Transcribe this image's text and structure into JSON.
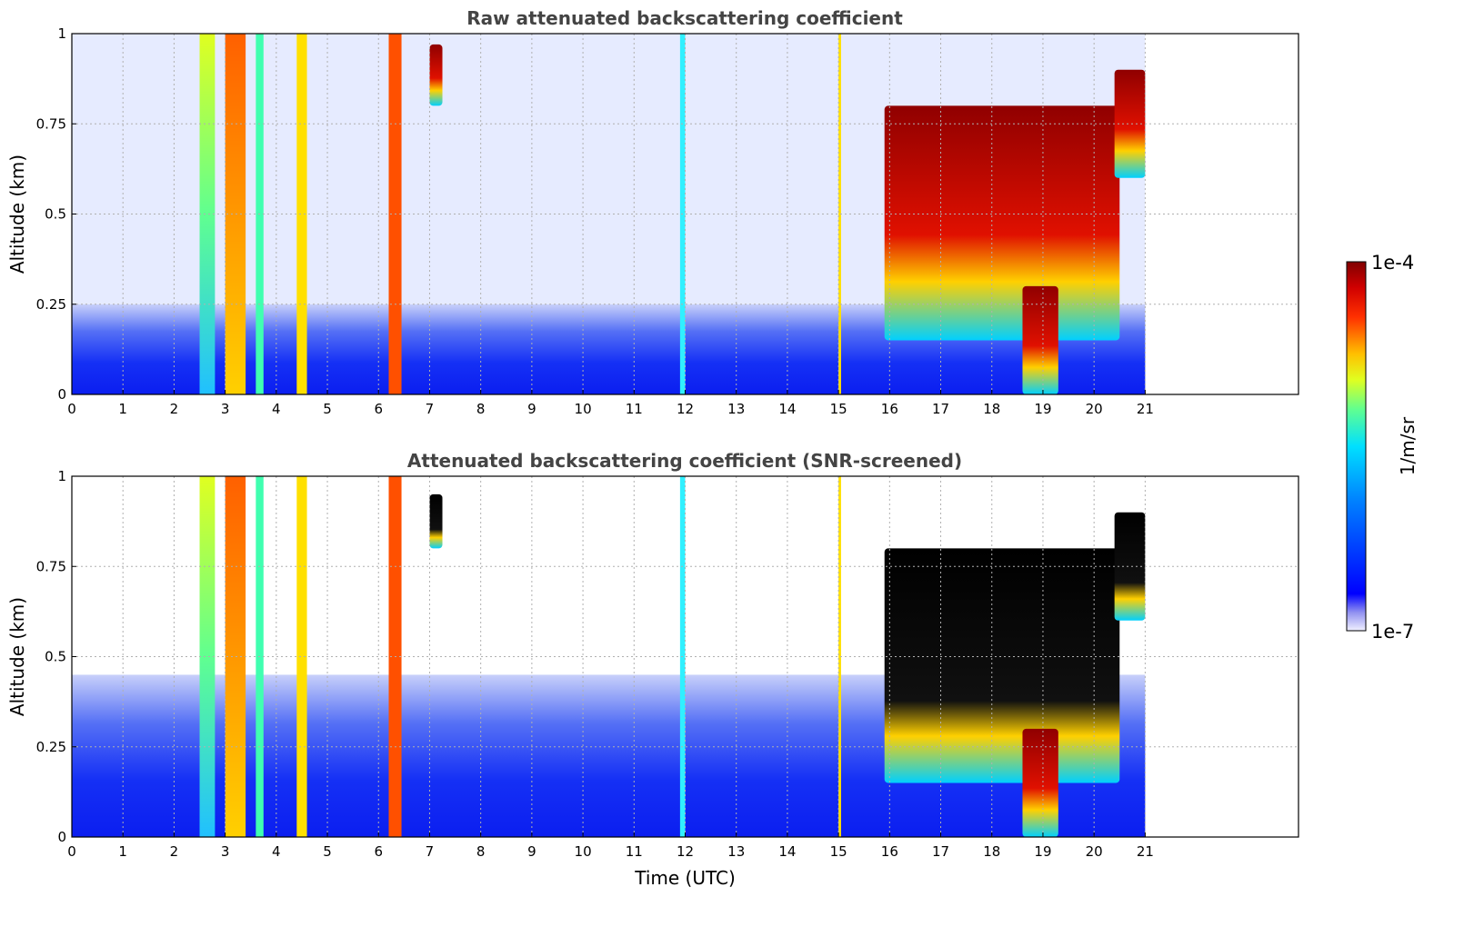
{
  "chart_data": [
    {
      "type": "heatmap",
      "title": "Raw attenuated backscattering coefficient",
      "xlabel": "",
      "ylabel": "Altitude (km)",
      "xlim": [
        0,
        24
      ],
      "ylim": [
        0,
        1
      ],
      "x_ticks": [
        0,
        1,
        2,
        3,
        4,
        5,
        6,
        7,
        8,
        9,
        10,
        11,
        12,
        13,
        14,
        15,
        16,
        17,
        18,
        19,
        20,
        21
      ],
      "y_ticks": [
        "0",
        "0.25",
        "0.5",
        "0.75",
        "1"
      ],
      "grid": true,
      "data_extent_x": [
        0,
        21
      ],
      "features": {
        "background": [
          {
            "alt": [
              0,
              0.25
            ],
            "level": "low-blue"
          },
          {
            "alt": [
              0.25,
              1
            ],
            "level": "sparse-noise"
          }
        ],
        "vertical_streaks": [
          {
            "t": [
              2.5,
              2.8
            ],
            "level": "cyan-yellow"
          },
          {
            "t": [
              3.0,
              3.4
            ],
            "level": "yellow-orange"
          },
          {
            "t": [
              3.6,
              3.75
            ],
            "level": "cyan-green"
          },
          {
            "t": [
              4.4,
              4.6
            ],
            "level": "yellow"
          },
          {
            "t": [
              6.2,
              6.45
            ],
            "level": "orange-red"
          },
          {
            "t": [
              11.9,
              12.0
            ],
            "level": "cyan"
          },
          {
            "t": [
              15.0,
              15.05
            ],
            "level": "yellow"
          }
        ],
        "cloud_patches": [
          {
            "t": [
              7.0,
              7.25
            ],
            "alt": [
              0.8,
              0.97
            ],
            "level": "dark-red"
          },
          {
            "t": [
              15.9,
              20.5
            ],
            "alt": [
              0.15,
              0.8
            ],
            "level": "dark-red"
          },
          {
            "t": [
              18.6,
              19.3
            ],
            "alt": [
              0.0,
              0.3
            ],
            "level": "dark-red"
          },
          {
            "t": [
              20.4,
              21.0
            ],
            "alt": [
              0.6,
              0.9
            ],
            "level": "dark-red"
          }
        ]
      }
    },
    {
      "type": "heatmap",
      "title": "Attenuated backscattering coefficient (SNR-screened)",
      "xlabel": "Time (UTC)",
      "ylabel": "Altitude (km)",
      "xlim": [
        0,
        24
      ],
      "ylim": [
        0,
        1
      ],
      "x_ticks": [
        0,
        1,
        2,
        3,
        4,
        5,
        6,
        7,
        8,
        9,
        10,
        11,
        12,
        13,
        14,
        15,
        16,
        17,
        18,
        19,
        20,
        21
      ],
      "y_ticks": [
        "0",
        "0.25",
        "0.5",
        "0.75",
        "1"
      ],
      "grid": true,
      "data_extent_x": [
        0,
        21
      ],
      "features": {
        "background": [
          {
            "alt": [
              0,
              0.45
            ],
            "level": "low-blue"
          },
          {
            "alt": [
              0.45,
              1
            ],
            "level": "screened-white"
          }
        ],
        "vertical_streaks": [
          {
            "t": [
              2.5,
              2.8
            ],
            "level": "cyan-yellow"
          },
          {
            "t": [
              3.0,
              3.4
            ],
            "level": "yellow-orange"
          },
          {
            "t": [
              3.6,
              3.75
            ],
            "level": "cyan-green"
          },
          {
            "t": [
              4.4,
              4.6
            ],
            "level": "yellow"
          },
          {
            "t": [
              6.2,
              6.45
            ],
            "level": "orange-red"
          },
          {
            "t": [
              11.9,
              12.0
            ],
            "level": "cyan"
          },
          {
            "t": [
              15.0,
              15.05
            ],
            "level": "yellow"
          }
        ],
        "cloud_patches": [
          {
            "t": [
              7.0,
              7.25
            ],
            "alt": [
              0.8,
              0.95
            ],
            "level": "black-saturated"
          },
          {
            "t": [
              15.9,
              20.5
            ],
            "alt": [
              0.15,
              0.8
            ],
            "level": "black-saturated"
          },
          {
            "t": [
              18.6,
              19.3
            ],
            "alt": [
              0.0,
              0.3
            ],
            "level": "dark-red"
          },
          {
            "t": [
              20.4,
              21.0
            ],
            "alt": [
              0.6,
              0.9
            ],
            "level": "black-saturated"
          }
        ]
      }
    }
  ],
  "colorbar": {
    "label": "1/m/sr",
    "min_label": "1e-7",
    "max_label": "1e-4",
    "scale": "log",
    "colormap": "jet",
    "colors": [
      "#e8e8f8",
      "#a0a0f0",
      "#0000ff",
      "#0060ff",
      "#00c0ff",
      "#30ffd0",
      "#a0ff60",
      "#ffff00",
      "#ffa000",
      "#ff3000",
      "#c00000",
      "#800000"
    ]
  }
}
